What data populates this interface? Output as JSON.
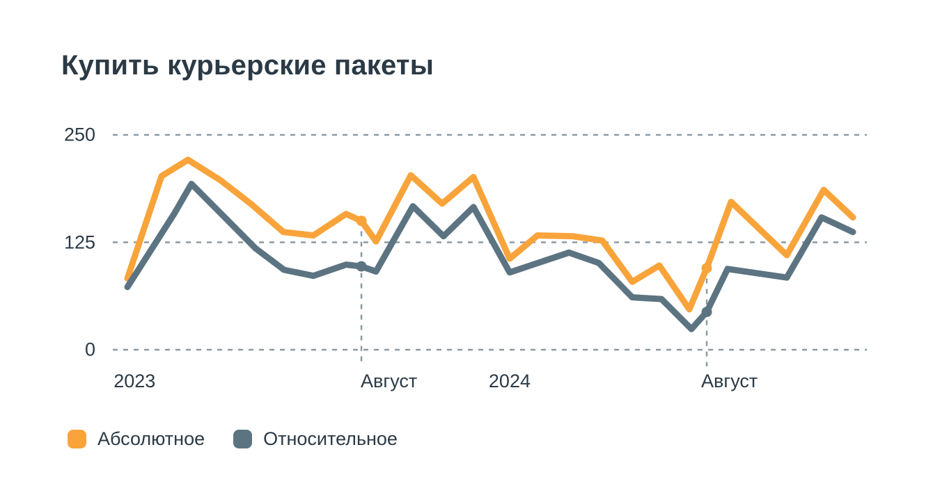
{
  "title": "Купить курьерские пакеты",
  "colors": {
    "absolute": "#F8A43B",
    "relative": "#5C7482",
    "text": "#2B3A45",
    "grid": "#8C99A3"
  },
  "legend": {
    "items": [
      {
        "label": "Абсолютное",
        "color": "#F8A43B"
      },
      {
        "label": "Относительное",
        "color": "#5C7482"
      }
    ]
  },
  "chart_data": {
    "type": "line",
    "title": "Купить курьерские пакеты",
    "ylim": [
      0,
      250
    ],
    "grid": true,
    "legend_position": "bottom-left",
    "yticks": [
      {
        "label": "250",
        "value": 250
      },
      {
        "label": "125",
        "value": 125
      },
      {
        "label": "0",
        "value": 0
      }
    ],
    "xticks": [
      {
        "label": "2023",
        "t": -0.019
      },
      {
        "label": "Август",
        "t": 0.3215
      },
      {
        "label": "2024",
        "t": 0.498
      },
      {
        "label": "Август",
        "t": 0.7908
      }
    ],
    "guides": [
      {
        "t": 0.3225,
        "top": 150
      },
      {
        "t": 0.7985,
        "top": 95
      }
    ],
    "series": [
      {
        "name": "Абсолютное",
        "color": "#F8A43B",
        "marker_t": [
          0.3225,
          0.7985
        ],
        "points": [
          [
            0.0,
            83
          ],
          [
            0.047,
            202
          ],
          [
            0.0835,
            221
          ],
          [
            0.1286,
            197
          ],
          [
            0.1699,
            170
          ],
          [
            0.215,
            137
          ],
          [
            0.2562,
            133
          ],
          [
            0.3013,
            158
          ],
          [
            0.3225,
            150
          ],
          [
            0.3426,
            126
          ],
          [
            0.3906,
            203
          ],
          [
            0.4338,
            170
          ],
          [
            0.477,
            201
          ],
          [
            0.5269,
            106
          ],
          [
            0.5653,
            133
          ],
          [
            0.6142,
            132
          ],
          [
            0.6545,
            127
          ],
          [
            0.6958,
            79
          ],
          [
            0.7332,
            98
          ],
          [
            0.7745,
            47
          ],
          [
            0.7985,
            95
          ],
          [
            0.8321,
            172
          ],
          [
            0.9088,
            110
          ],
          [
            0.9597,
            186
          ],
          [
            1.0,
            154
          ]
        ]
      },
      {
        "name": "Относительное",
        "color": "#5C7482",
        "marker_t": [
          0.3225,
          0.7985
        ],
        "points": [
          [
            0.0,
            73
          ],
          [
            0.0643,
            158
          ],
          [
            0.0883,
            193
          ],
          [
            0.1766,
            118
          ],
          [
            0.2159,
            93
          ],
          [
            0.2562,
            86
          ],
          [
            0.3013,
            99
          ],
          [
            0.3225,
            97
          ],
          [
            0.3426,
            91
          ],
          [
            0.3935,
            167
          ],
          [
            0.4357,
            132
          ],
          [
            0.477,
            166
          ],
          [
            0.5269,
            90
          ],
          [
            0.6085,
            113
          ],
          [
            0.6497,
            101
          ],
          [
            0.6958,
            61
          ],
          [
            0.7361,
            59
          ],
          [
            0.7774,
            24
          ],
          [
            0.7985,
            44
          ],
          [
            0.8273,
            94
          ],
          [
            0.9088,
            84
          ],
          [
            0.9568,
            154
          ],
          [
            1.0,
            137
          ]
        ]
      }
    ]
  }
}
